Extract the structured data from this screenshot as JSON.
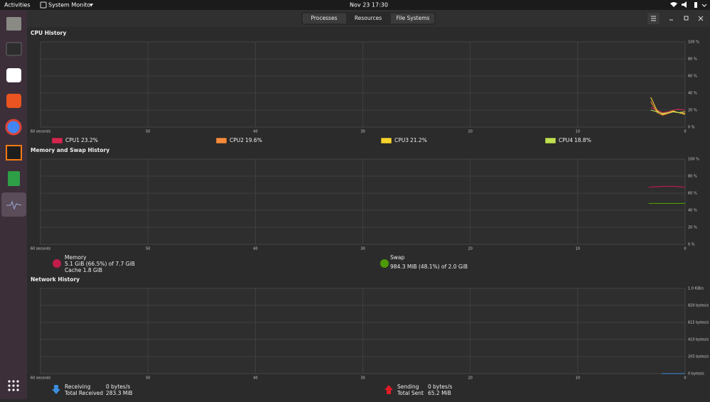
{
  "topbar": {
    "activities": "Activities",
    "app": "System Monitor",
    "clock": "Nov 23  17:30"
  },
  "tabs": [
    "Processes",
    "Resources",
    "File Systems"
  ],
  "cpu": {
    "title": "CPU History",
    "xlim": [
      60,
      0
    ],
    "ylim": [
      0,
      100
    ],
    "xticks": [
      {
        "value": 60,
        "label": "60 seconds"
      },
      50,
      40,
      30,
      20,
      10,
      0
    ],
    "yticks": [
      {
        "value": 100,
        "label": "100 %"
      },
      {
        "value": 80,
        "label": "80 %"
      },
      {
        "value": 60,
        "label": "60 %"
      },
      {
        "value": 40,
        "label": "40 %"
      },
      {
        "value": 20,
        "label": "20 %"
      },
      {
        "value": 0,
        "label": "0 %"
      }
    ],
    "history": {
      "seconds": [
        3.2,
        2.6,
        2.1,
        1.6,
        1.1,
        0.6,
        0
      ],
      "series": [
        {
          "color": "#d5264f",
          "values": [
            23,
            20,
            17,
            18,
            20,
            21,
            20
          ]
        },
        {
          "color": "#f58b3a",
          "values": [
            30,
            17,
            14,
            16,
            18,
            17,
            16
          ]
        },
        {
          "color": "#f6d32d",
          "values": [
            35,
            19,
            15,
            17,
            19,
            17,
            15
          ]
        },
        {
          "color": "#c0e050",
          "values": [
            20,
            18,
            16,
            17,
            18,
            17,
            18
          ]
        }
      ]
    },
    "legend": [
      {
        "label": "CPU1",
        "value": "23.2%",
        "color": "#d5264f"
      },
      {
        "label": "CPU2",
        "value": "19.6%",
        "color": "#f58b3a"
      },
      {
        "label": "CPU3",
        "value": "21.2%",
        "color": "#f6d32d"
      },
      {
        "label": "CPU4",
        "value": "18.8%",
        "color": "#c0e050"
      }
    ]
  },
  "memory": {
    "title": "Memory and Swap History",
    "xlim": [
      60,
      0
    ],
    "ylim": [
      0,
      100
    ],
    "xticks": [
      {
        "value": 60,
        "label": "60 seconds"
      },
      50,
      40,
      30,
      20,
      10,
      0
    ],
    "yticks": [
      {
        "value": 100,
        "label": "100 %"
      },
      {
        "value": 80,
        "label": "80 %"
      },
      {
        "value": 60,
        "label": "60 %"
      },
      {
        "value": 40,
        "label": "40 %"
      },
      {
        "value": 20,
        "label": "20 %"
      },
      {
        "value": 0,
        "label": "0 %"
      }
    ],
    "history": {
      "seconds": [
        3.4,
        2,
        1,
        0
      ],
      "series": [
        {
          "color": "#c01c4c",
          "values": [
            67,
            68,
            68,
            67
          ]
        },
        {
          "color": "#4e9a06",
          "values": [
            48,
            48,
            48,
            48
          ]
        }
      ]
    },
    "memory_legend": {
      "label": "Memory",
      "usage": "5.1 GiB (66.5%) of 7.7 GiB",
      "cache": "Cache 1.8 GiB",
      "color": "#c01c4c"
    },
    "swap_legend": {
      "label": "Swap",
      "usage": "984.3 MiB (48.1%) of 2.0 GiB",
      "color": "#4e9a06"
    }
  },
  "network": {
    "title": "Network History",
    "xlim": [
      60,
      0
    ],
    "ylim": [
      0,
      1024
    ],
    "xticks": [
      {
        "value": 60,
        "label": "60 seconds"
      },
      50,
      40,
      30,
      20,
      10,
      0
    ],
    "yticks": [
      {
        "value": 1024,
        "label": "1.0 KiB/s"
      },
      {
        "value": 820,
        "label": "820 bytes/s"
      },
      {
        "value": 615,
        "label": "615 bytes/s"
      },
      {
        "value": 410,
        "label": "410 bytes/s"
      },
      {
        "value": 205,
        "label": "205 bytes/s"
      },
      {
        "value": 0,
        "label": "0 bytes/s"
      }
    ],
    "history": {
      "seconds": [
        2.2,
        0
      ],
      "series": [
        {
          "color": "#3b8edc",
          "values": [
            0,
            0
          ]
        }
      ]
    },
    "receiving": {
      "label": "Receiving",
      "rate": "0 bytes/s",
      "total_label": "Total Received",
      "total": "283.3 MiB",
      "color": "#3b8edc"
    },
    "sending": {
      "label": "Sending",
      "rate": "0 bytes/s",
      "total_label": "Total Sent",
      "total": "65.2 MiB",
      "color": "#e01b24"
    }
  }
}
